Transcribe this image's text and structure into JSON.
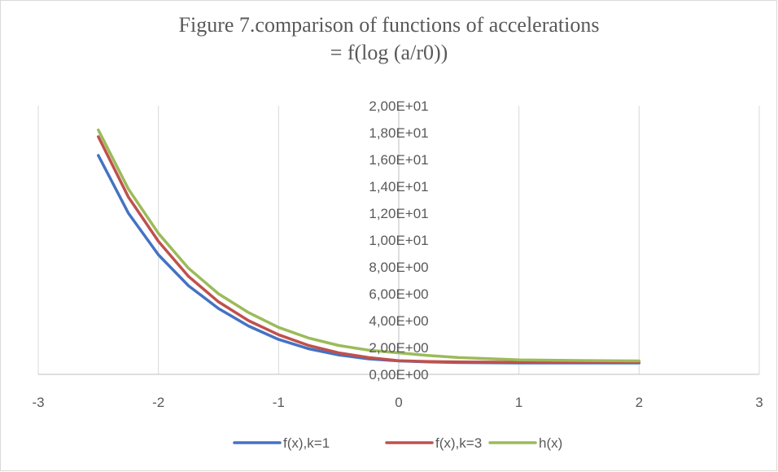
{
  "chart_data": {
    "type": "line",
    "title_lines": [
      "Figure 7.comparison of functions of accelerations",
      "= f(log (a/r0))"
    ],
    "xlabel": "",
    "ylabel": "",
    "xlim": [
      -3,
      3
    ],
    "ylim": [
      0,
      20
    ],
    "x_ticks": [
      -3,
      -2,
      -1,
      0,
      1,
      2,
      3
    ],
    "x_tick_labels": [
      "-3",
      "-2",
      "-1",
      "0",
      "1",
      "2",
      "3"
    ],
    "y_ticks": [
      0,
      2,
      4,
      6,
      8,
      10,
      12,
      14,
      16,
      18,
      20
    ],
    "y_tick_labels": [
      "0,00E+00",
      "2,00E+00",
      "4,00E+00",
      "6,00E+00",
      "8,00E+00",
      "1,00E+01",
      "1,20E+01",
      "1,40E+01",
      "1,60E+01",
      "1,80E+01",
      "2,00E+01"
    ],
    "grid": "vertical",
    "legend_position": "bottom",
    "series": [
      {
        "name": "f(x),k=1",
        "color": "#4472c4",
        "x": [
          -2.5,
          -2.25,
          -2.0,
          -1.75,
          -1.5,
          -1.25,
          -1.0,
          -0.75,
          -0.5,
          -0.25,
          0.0,
          0.25,
          0.5,
          1.0,
          1.5,
          2.0
        ],
        "y": [
          16.3,
          12.0,
          8.9,
          6.6,
          4.9,
          3.6,
          2.6,
          1.9,
          1.45,
          1.15,
          1.0,
          0.92,
          0.88,
          0.85,
          0.85,
          0.85
        ]
      },
      {
        "name": "f(x),k=3",
        "color": "#c0504d",
        "x": [
          -2.5,
          -2.25,
          -2.0,
          -1.75,
          -1.5,
          -1.25,
          -1.0,
          -0.75,
          -0.5,
          -0.25,
          0.0,
          0.25,
          0.5,
          1.0,
          1.5,
          2.0
        ],
        "y": [
          17.7,
          13.2,
          9.9,
          7.3,
          5.4,
          4.0,
          2.95,
          2.15,
          1.6,
          1.25,
          1.02,
          0.95,
          0.92,
          0.9,
          0.9,
          0.9
        ]
      },
      {
        "name": "h(x)",
        "color": "#9bbb59",
        "x": [
          -2.5,
          -2.25,
          -2.0,
          -1.75,
          -1.5,
          -1.25,
          -1.0,
          -0.75,
          -0.5,
          -0.25,
          0.0,
          0.25,
          0.5,
          1.0,
          1.5,
          2.0
        ],
        "y": [
          18.2,
          13.8,
          10.5,
          7.9,
          6.0,
          4.6,
          3.5,
          2.7,
          2.15,
          1.8,
          1.6,
          1.4,
          1.25,
          1.08,
          1.03,
          1.0
        ]
      }
    ]
  }
}
